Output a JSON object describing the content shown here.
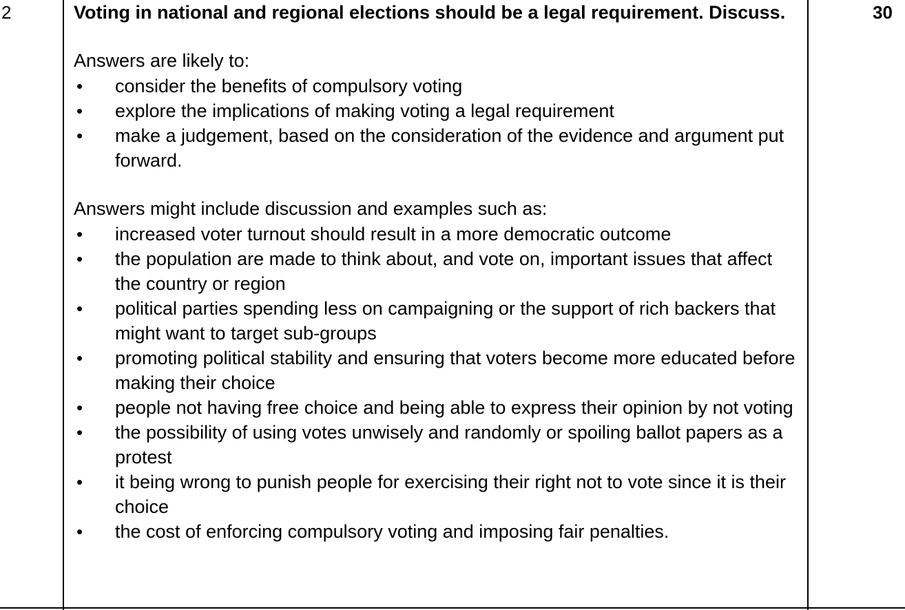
{
  "row": {
    "question_number": "2",
    "marks": "30",
    "question": "Voting in national and regional elections should be a legal requirement. Discuss.",
    "section1": {
      "intro": "Answers are likely to:",
      "items": [
        "consider the benefits of compulsory voting",
        "explore the implications of making voting a legal requirement",
        "make a judgement, based on the consideration of the evidence and argument put forward."
      ]
    },
    "section2": {
      "intro": "Answers might include discussion and examples such as:",
      "items": [
        "increased voter turnout should result in a more democratic outcome",
        "the population are made to think about, and vote on, important issues that affect the country or region",
        "political parties spending less on campaigning or the support of rich backers that might want to target sub-groups",
        "promoting political stability and ensuring that voters become more educated before making their choice",
        "people not having free choice and being able to express their opinion by not voting",
        "the possibility of using votes unwisely and randomly or spoiling ballot papers as a protest",
        "it being wrong to punish people for exercising their right not to vote since it is their choice",
        "the cost of enforcing compulsory voting and imposing fair penalties."
      ]
    },
    "bullet_glyph": "•"
  }
}
